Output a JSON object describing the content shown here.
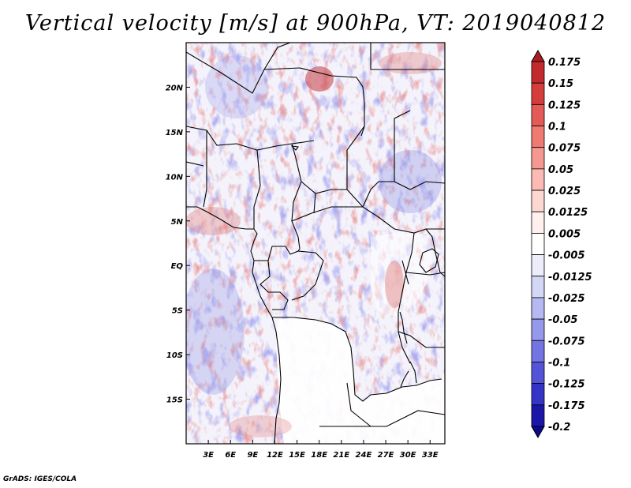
{
  "title": "Vertical velocity [m/s] at 900hPa, VT: 2019040812",
  "credit": "GrADS: IGES/COLA",
  "map": {
    "lon_range": [
      0,
      35
    ],
    "lat_range": [
      -20,
      25
    ],
    "lon_ticks": [
      {
        "value": 3,
        "label": "3E"
      },
      {
        "value": 6,
        "label": "6E"
      },
      {
        "value": 9,
        "label": "9E"
      },
      {
        "value": 12,
        "label": "12E"
      },
      {
        "value": 15,
        "label": "15E"
      },
      {
        "value": 18,
        "label": "18E"
      },
      {
        "value": 21,
        "label": "21E"
      },
      {
        "value": 24,
        "label": "24E"
      },
      {
        "value": 27,
        "label": "27E"
      },
      {
        "value": 30,
        "label": "30E"
      },
      {
        "value": 33,
        "label": "33E"
      }
    ],
    "lat_ticks": [
      {
        "value": 20,
        "label": "20N"
      },
      {
        "value": 15,
        "label": "15N"
      },
      {
        "value": 10,
        "label": "10N"
      },
      {
        "value": 5,
        "label": "5N"
      },
      {
        "value": 0,
        "label": "EQ"
      },
      {
        "value": -5,
        "label": "5S"
      },
      {
        "value": -10,
        "label": "10S"
      },
      {
        "value": -15,
        "label": "15S"
      }
    ]
  },
  "colorbar": {
    "levels": [
      "0.175",
      "0.15",
      "0.125",
      "0.1",
      "0.075",
      "0.05",
      "0.025",
      "0.0125",
      "0.005",
      "-0.005",
      "-0.0125",
      "-0.025",
      "-0.05",
      "-0.075",
      "-0.1",
      "-0.125",
      "-0.175",
      "-0.2"
    ],
    "colors": [
      "#aa1c22",
      "#c22a2e",
      "#d53c3c",
      "#e45a56",
      "#ee7a72",
      "#f59892",
      "#fbbab4",
      "#fdd8d2",
      "#fff0ee",
      "#ffffff",
      "#ececfb",
      "#d4d6f6",
      "#b6b8f1",
      "#9698eb",
      "#7474e2",
      "#5454d6",
      "#3434c6",
      "#1c16a8",
      "#0c0a8a"
    ]
  }
}
